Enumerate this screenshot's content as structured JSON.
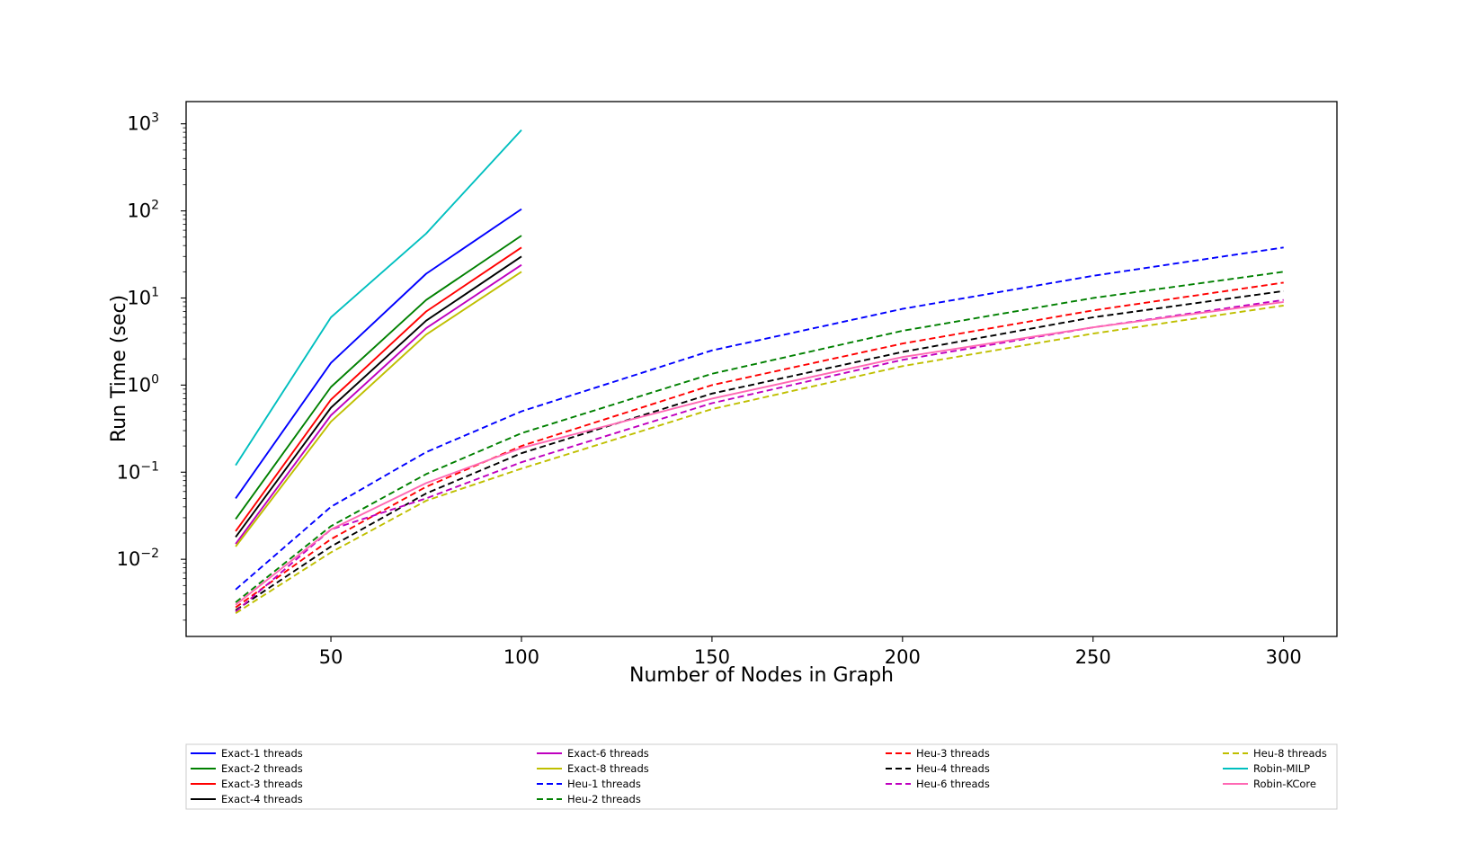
{
  "chart_data": {
    "type": "line",
    "title": "",
    "xlabel": "Number of Nodes in Graph",
    "ylabel": "Run Time (sec)",
    "xlim": [
      12,
      314
    ],
    "ylim": [
      0.0013,
      1800
    ],
    "yscale": "log",
    "x_ticks": [
      50,
      100,
      150,
      200,
      250,
      300
    ],
    "y_ticks": [
      {
        "value": 0.01,
        "base": "10",
        "exp": "−2"
      },
      {
        "value": 0.1,
        "base": "10",
        "exp": "−1"
      },
      {
        "value": 1,
        "base": "10",
        "exp": "0"
      },
      {
        "value": 10,
        "base": "10",
        "exp": "1"
      },
      {
        "value": 100,
        "base": "10",
        "exp": "2"
      },
      {
        "value": 1000,
        "base": "10",
        "exp": "3"
      }
    ],
    "grid": false,
    "legend_position": "below",
    "series": [
      {
        "name": "Exact-1 threads",
        "color": "#0000ff",
        "dash": false,
        "x": [
          25,
          50,
          75,
          100
        ],
        "y": [
          0.05,
          1.8,
          19,
          105
        ]
      },
      {
        "name": "Exact-2 threads",
        "color": "#008000",
        "dash": false,
        "x": [
          25,
          50,
          75,
          100
        ],
        "y": [
          0.029,
          0.95,
          9.5,
          52
        ]
      },
      {
        "name": "Exact-3 threads",
        "color": "#ff0000",
        "dash": false,
        "x": [
          25,
          50,
          75,
          100
        ],
        "y": [
          0.021,
          0.68,
          7.0,
          38
        ]
      },
      {
        "name": "Exact-4 threads",
        "color": "#000000",
        "dash": false,
        "x": [
          25,
          50,
          75,
          100
        ],
        "y": [
          0.018,
          0.55,
          5.5,
          30
        ]
      },
      {
        "name": "Exact-6 threads",
        "color": "#bf00bf",
        "dash": false,
        "x": [
          25,
          50,
          75,
          100
        ],
        "y": [
          0.015,
          0.45,
          4.5,
          24
        ]
      },
      {
        "name": "Exact-8 threads",
        "color": "#bfbf00",
        "dash": false,
        "x": [
          25,
          50,
          75,
          100
        ],
        "y": [
          0.014,
          0.38,
          3.8,
          20
        ]
      },
      {
        "name": "Heu-1 threads",
        "color": "#0000ff",
        "dash": true,
        "x": [
          25,
          50,
          75,
          100,
          150,
          200,
          250,
          300
        ],
        "y": [
          0.0045,
          0.04,
          0.17,
          0.5,
          2.5,
          7.5,
          18,
          38
        ]
      },
      {
        "name": "Heu-2 threads",
        "color": "#008000",
        "dash": true,
        "x": [
          25,
          50,
          75,
          100,
          150,
          200,
          250,
          300
        ],
        "y": [
          0.0032,
          0.024,
          0.095,
          0.28,
          1.35,
          4.2,
          10,
          20
        ]
      },
      {
        "name": "Heu-3 threads",
        "color": "#ff0000",
        "dash": true,
        "x": [
          25,
          50,
          75,
          100,
          150,
          200,
          250,
          300
        ],
        "y": [
          0.0028,
          0.017,
          0.068,
          0.2,
          1.0,
          3.0,
          7.2,
          15
        ]
      },
      {
        "name": "Heu-4 threads",
        "color": "#000000",
        "dash": true,
        "x": [
          25,
          50,
          75,
          100,
          150,
          200,
          250,
          300
        ],
        "y": [
          0.0026,
          0.014,
          0.057,
          0.165,
          0.8,
          2.4,
          6.0,
          12
        ]
      },
      {
        "name": "Heu-6 threads",
        "color": "#bf00bf",
        "dash": true,
        "x": [
          25,
          50,
          75,
          100,
          150,
          200,
          250,
          300
        ],
        "y": [
          0.0025,
          0.022,
          0.05,
          0.13,
          0.62,
          1.95,
          4.6,
          9.5
        ]
      },
      {
        "name": "Heu-8 threads",
        "color": "#bfbf00",
        "dash": true,
        "x": [
          25,
          50,
          75,
          100,
          150,
          200,
          250,
          300
        ],
        "y": [
          0.0024,
          0.012,
          0.047,
          0.11,
          0.53,
          1.65,
          3.9,
          8.2
        ]
      },
      {
        "name": "Robin-MILP",
        "color": "#00bfbf",
        "dash": false,
        "x": [
          25,
          50,
          75,
          100
        ],
        "y": [
          0.12,
          6.0,
          55,
          850
        ]
      },
      {
        "name": "Robin-KCore",
        "color": "#ff69b4",
        "dash": false,
        "x": [
          25,
          50,
          75,
          100,
          150,
          200,
          250,
          300
        ],
        "y": [
          0.003,
          0.022,
          0.075,
          0.19,
          0.7,
          2.1,
          4.6,
          9
        ]
      }
    ],
    "legend_columns": [
      [
        "Exact-1 threads",
        "Exact-2 threads",
        "Exact-3 threads",
        "Exact-4 threads"
      ],
      [
        "Exact-6 threads",
        "Exact-8 threads",
        "Heu-1 threads",
        "Heu-2 threads"
      ],
      [
        "Heu-3 threads",
        "Heu-4 threads",
        "Heu-6 threads"
      ],
      [
        "Heu-8 threads",
        "Robin-MILP",
        "Robin-KCore"
      ]
    ]
  }
}
